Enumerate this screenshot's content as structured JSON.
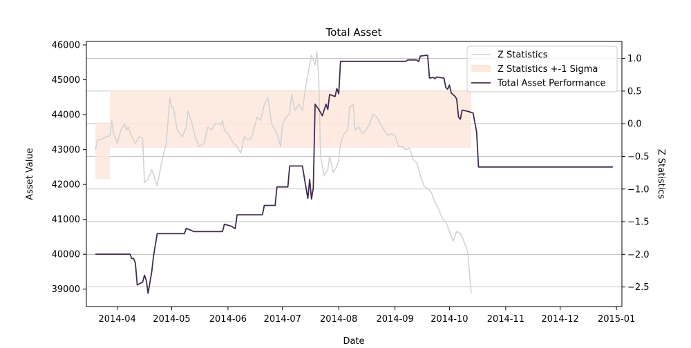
{
  "chart_data": {
    "type": "line",
    "title": "Total Asset",
    "xlabel": "Date",
    "ylabel": "Asset Value",
    "ylabel_right": "Z Statistics",
    "x_ticks": [
      "2014-04",
      "2014-05",
      "2014-06",
      "2014-07",
      "2014-08",
      "2014-09",
      "2014-10",
      "2014-11",
      "2014-12",
      "2015-01"
    ],
    "xlim": [
      "2014-03-15",
      "2015-01-04"
    ],
    "ylim": [
      38500,
      46100
    ],
    "y_ticks": [
      39000,
      40000,
      41000,
      42000,
      43000,
      44000,
      45000,
      46000
    ],
    "ylim_right": [
      -2.8,
      1.26
    ],
    "y_ticks_right": [
      1.0,
      0.5,
      0.0,
      -0.5,
      -1.0,
      -1.5,
      -2.0,
      -2.5
    ],
    "grid": "horizontal lines at right-axis ticks",
    "legend_position": "upper-right",
    "legend": [
      "Z Statistics",
      "Z Statistics +-1 Sigma",
      "Total Asset Performance"
    ],
    "colors": {
      "total_asset": "#3f2d4d",
      "z_stat": "#d3d3d3",
      "band": "#fde8dc",
      "grid": "#b0b0b0"
    },
    "series": [
      {
        "name": "Total Asset Performance",
        "axis": "left",
        "points": [
          [
            "2014-03-20",
            40000
          ],
          [
            "2014-04-08",
            40000
          ],
          [
            "2014-04-09",
            39880
          ],
          [
            "2014-04-10",
            39880
          ],
          [
            "2014-04-11",
            39750
          ],
          [
            "2014-04-12",
            39120
          ],
          [
            "2014-04-15",
            39200
          ],
          [
            "2014-04-16",
            39400
          ],
          [
            "2014-04-17",
            39250
          ],
          [
            "2014-04-18",
            38880
          ],
          [
            "2014-04-20",
            39500
          ],
          [
            "2014-04-21",
            39950
          ],
          [
            "2014-04-23",
            40590
          ],
          [
            "2014-05-08",
            40590
          ],
          [
            "2014-05-09",
            40740
          ],
          [
            "2014-05-12",
            40680
          ],
          [
            "2014-05-13",
            40650
          ],
          [
            "2014-05-29",
            40650
          ],
          [
            "2014-05-30",
            40860
          ],
          [
            "2014-06-03",
            40800
          ],
          [
            "2014-06-05",
            40730
          ],
          [
            "2014-06-06",
            41130
          ],
          [
            "2014-06-20",
            41130
          ],
          [
            "2014-06-21",
            41400
          ],
          [
            "2014-06-27",
            41400
          ],
          [
            "2014-06-28",
            41930
          ],
          [
            "2014-07-04",
            41930
          ],
          [
            "2014-07-05",
            42530
          ],
          [
            "2014-07-12",
            42530
          ],
          [
            "2014-07-14",
            41900
          ],
          [
            "2014-07-15",
            41600
          ],
          [
            "2014-07-16",
            42150
          ],
          [
            "2014-07-17",
            41580
          ],
          [
            "2014-07-18",
            41900
          ],
          [
            "2014-07-19",
            44300
          ],
          [
            "2014-07-21",
            44150
          ],
          [
            "2014-07-23",
            43970
          ],
          [
            "2014-07-25",
            44300
          ],
          [
            "2014-07-26",
            44150
          ],
          [
            "2014-07-27",
            44580
          ],
          [
            "2014-07-30",
            44520
          ],
          [
            "2014-07-31",
            44750
          ],
          [
            "2014-08-01",
            44600
          ],
          [
            "2014-08-02",
            45530
          ],
          [
            "2014-09-07",
            45530
          ],
          [
            "2014-09-08",
            45570
          ],
          [
            "2014-09-13",
            45570
          ],
          [
            "2014-09-14",
            45520
          ],
          [
            "2014-09-15",
            45680
          ],
          [
            "2014-09-18",
            45700
          ],
          [
            "2014-09-19",
            45700
          ],
          [
            "2014-09-20",
            45050
          ],
          [
            "2014-09-22",
            45070
          ],
          [
            "2014-09-23",
            45030
          ],
          [
            "2014-09-24",
            45080
          ],
          [
            "2014-09-28",
            45050
          ],
          [
            "2014-09-29",
            44780
          ],
          [
            "2014-09-30",
            44730
          ],
          [
            "2014-10-01",
            44850
          ],
          [
            "2014-10-02",
            44620
          ],
          [
            "2014-10-04",
            44530
          ],
          [
            "2014-10-05",
            44450
          ],
          [
            "2014-10-06",
            43930
          ],
          [
            "2014-10-07",
            43870
          ],
          [
            "2014-10-08",
            44130
          ],
          [
            "2014-10-11",
            44100
          ],
          [
            "2014-10-14",
            44050
          ],
          [
            "2014-10-16",
            43500
          ],
          [
            "2014-10-17",
            42500
          ],
          [
            "2014-12-30",
            42500
          ]
        ]
      },
      {
        "name": "Z Statistics",
        "axis": "right",
        "points": [
          [
            "2014-03-20",
            -0.4
          ],
          [
            "2014-03-21",
            -0.25
          ],
          [
            "2014-03-22",
            -0.25
          ],
          [
            "2014-03-24",
            -0.23
          ],
          [
            "2014-03-26",
            -0.2
          ],
          [
            "2014-03-28",
            -0.18
          ],
          [
            "2014-03-29",
            0.05
          ],
          [
            "2014-03-30",
            -0.15
          ],
          [
            "2014-04-01",
            -0.3
          ],
          [
            "2014-04-03",
            -0.1
          ],
          [
            "2014-04-05",
            0.0
          ],
          [
            "2014-04-06",
            -0.1
          ],
          [
            "2014-04-07",
            -0.05
          ],
          [
            "2014-04-09",
            -0.2
          ],
          [
            "2014-04-11",
            -0.3
          ],
          [
            "2014-04-13",
            -0.2
          ],
          [
            "2014-04-15",
            -0.22
          ],
          [
            "2014-04-16",
            -0.9
          ],
          [
            "2014-04-18",
            -0.85
          ],
          [
            "2014-04-20",
            -0.7
          ],
          [
            "2014-04-23",
            -0.95
          ],
          [
            "2014-04-25",
            -0.65
          ],
          [
            "2014-04-28",
            -0.3
          ],
          [
            "2014-04-30",
            0.4
          ],
          [
            "2014-05-01",
            0.25
          ],
          [
            "2014-05-02",
            0.25
          ],
          [
            "2014-05-04",
            -0.1
          ],
          [
            "2014-05-07",
            -0.2
          ],
          [
            "2014-05-09",
            -0.05
          ],
          [
            "2014-05-10",
            0.2
          ],
          [
            "2014-05-12",
            0.02
          ],
          [
            "2014-05-14",
            -0.2
          ],
          [
            "2014-05-16",
            -0.35
          ],
          [
            "2014-05-19",
            -0.3
          ],
          [
            "2014-05-20",
            -0.15
          ],
          [
            "2014-05-21",
            -0.05
          ],
          [
            "2014-05-23",
            -0.1
          ],
          [
            "2014-05-25",
            0.0
          ],
          [
            "2014-05-27",
            0.0
          ],
          [
            "2014-05-28",
            -0.02
          ],
          [
            "2014-05-29",
            0.05
          ],
          [
            "2014-05-30",
            -0.1
          ],
          [
            "2014-06-01",
            -0.15
          ],
          [
            "2014-06-04",
            -0.3
          ],
          [
            "2014-06-06",
            -0.35
          ],
          [
            "2014-06-08",
            -0.45
          ],
          [
            "2014-06-10",
            -0.2
          ],
          [
            "2014-06-12",
            -0.25
          ],
          [
            "2014-06-14",
            -0.22
          ],
          [
            "2014-06-16",
            0.0
          ],
          [
            "2014-06-17",
            0.1
          ],
          [
            "2014-06-19",
            0.05
          ],
          [
            "2014-06-21",
            0.3
          ],
          [
            "2014-06-23",
            0.4
          ],
          [
            "2014-06-25",
            0.0
          ],
          [
            "2014-06-28",
            -0.15
          ],
          [
            "2014-06-30",
            -0.35
          ],
          [
            "2014-07-01",
            0.0
          ],
          [
            "2014-07-03",
            0.1
          ],
          [
            "2014-07-05",
            0.15
          ],
          [
            "2014-07-06",
            0.45
          ],
          [
            "2014-07-08",
            0.2
          ],
          [
            "2014-07-10",
            0.3
          ],
          [
            "2014-07-12",
            0.2
          ],
          [
            "2014-07-14",
            0.6
          ],
          [
            "2014-07-17",
            1.05
          ],
          [
            "2014-07-19",
            0.9
          ],
          [
            "2014-07-20",
            1.1
          ],
          [
            "2014-07-21",
            0.7
          ],
          [
            "2014-07-22",
            -0.5
          ],
          [
            "2014-07-24",
            -0.8
          ],
          [
            "2014-07-26",
            -0.7
          ],
          [
            "2014-07-27",
            -0.5
          ],
          [
            "2014-07-29",
            -0.75
          ],
          [
            "2014-07-31",
            -0.65
          ],
          [
            "2014-08-01",
            -0.55
          ],
          [
            "2014-08-02",
            -0.3
          ],
          [
            "2014-08-04",
            -0.15
          ],
          [
            "2014-08-06",
            -0.1
          ],
          [
            "2014-08-07",
            0.25
          ],
          [
            "2014-08-09",
            0.3
          ],
          [
            "2014-08-10",
            -0.1
          ],
          [
            "2014-08-12",
            -0.05
          ],
          [
            "2014-08-14",
            -0.15
          ],
          [
            "2014-08-16",
            -0.1
          ],
          [
            "2014-08-18",
            0.0
          ],
          [
            "2014-08-20",
            0.15
          ],
          [
            "2014-08-22",
            0.1
          ],
          [
            "2014-08-24",
            0.0
          ],
          [
            "2014-08-26",
            -0.1
          ],
          [
            "2014-08-28",
            -0.18
          ],
          [
            "2014-08-30",
            -0.15
          ],
          [
            "2014-09-01",
            -0.18
          ],
          [
            "2014-09-03",
            -0.35
          ],
          [
            "2014-09-05",
            -0.35
          ],
          [
            "2014-09-07",
            -0.4
          ],
          [
            "2014-09-09",
            -0.37
          ],
          [
            "2014-09-11",
            -0.55
          ],
          [
            "2014-09-13",
            -0.6
          ],
          [
            "2014-09-15",
            -0.8
          ],
          [
            "2014-09-17",
            -0.95
          ],
          [
            "2014-09-19",
            -1.0
          ],
          [
            "2014-09-21",
            -1.05
          ],
          [
            "2014-09-23",
            -1.2
          ],
          [
            "2014-09-25",
            -1.3
          ],
          [
            "2014-09-27",
            -1.45
          ],
          [
            "2014-09-29",
            -1.5
          ],
          [
            "2014-10-01",
            -1.65
          ],
          [
            "2014-10-03",
            -1.8
          ],
          [
            "2014-10-05",
            -1.65
          ],
          [
            "2014-10-07",
            -1.68
          ],
          [
            "2014-10-09",
            -1.8
          ],
          [
            "2014-10-11",
            -1.95
          ],
          [
            "2014-10-13",
            -2.6
          ]
        ]
      }
    ],
    "band": {
      "name": "Z Statistics +-1 Sigma",
      "axis": "right",
      "segments": [
        {
          "x": [
            "2014-03-20",
            "2014-03-28"
          ],
          "lower": -0.85,
          "upper": 0.02
        },
        {
          "x": [
            "2014-03-28",
            "2014-10-13"
          ],
          "lower": -0.37,
          "upper": 0.5
        }
      ]
    }
  }
}
